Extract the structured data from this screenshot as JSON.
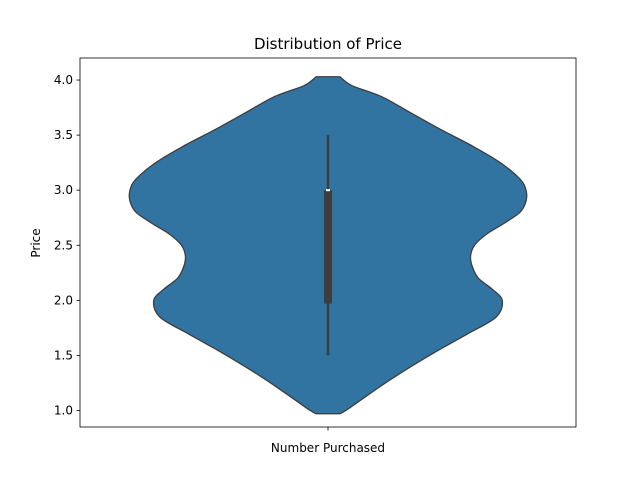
{
  "chart_data": {
    "type": "violin",
    "title": "Distribution of Price",
    "xlabel": "",
    "ylabel": "Price",
    "categories": [
      "Number Purchased"
    ],
    "ylim": [
      0.85,
      4.2
    ],
    "yticks": [
      1.0,
      1.5,
      2.0,
      2.5,
      3.0,
      3.5,
      4.0
    ],
    "ytick_labels": [
      "1.0",
      "1.5",
      "2.0",
      "2.5",
      "3.0",
      "3.5",
      "4.0"
    ],
    "grid": false,
    "colors": {
      "violin_fill": "#3274a1",
      "violin_edge": "#3d3d3d",
      "box": "#3d3d3d",
      "median": "#ffffff"
    },
    "violin": {
      "density_profile": [
        {
          "y": 0.97,
          "half_width": 0.06
        },
        {
          "y": 1.0,
          "half_width": 0.09
        },
        {
          "y": 1.1,
          "half_width": 0.17
        },
        {
          "y": 1.25,
          "half_width": 0.29
        },
        {
          "y": 1.4,
          "half_width": 0.42
        },
        {
          "y": 1.55,
          "half_width": 0.56
        },
        {
          "y": 1.7,
          "half_width": 0.71
        },
        {
          "y": 1.85,
          "half_width": 0.85
        },
        {
          "y": 2.0,
          "half_width": 0.88
        },
        {
          "y": 2.1,
          "half_width": 0.83
        },
        {
          "y": 2.2,
          "half_width": 0.76
        },
        {
          "y": 2.3,
          "half_width": 0.73
        },
        {
          "y": 2.4,
          "half_width": 0.72
        },
        {
          "y": 2.5,
          "half_width": 0.74
        },
        {
          "y": 2.6,
          "half_width": 0.8
        },
        {
          "y": 2.7,
          "half_width": 0.89
        },
        {
          "y": 2.8,
          "half_width": 0.97
        },
        {
          "y": 2.9,
          "half_width": 1.0
        },
        {
          "y": 3.0,
          "half_width": 1.0
        },
        {
          "y": 3.1,
          "half_width": 0.97
        },
        {
          "y": 3.25,
          "half_width": 0.87
        },
        {
          "y": 3.4,
          "half_width": 0.73
        },
        {
          "y": 3.55,
          "half_width": 0.57
        },
        {
          "y": 3.7,
          "half_width": 0.42
        },
        {
          "y": 3.85,
          "half_width": 0.27
        },
        {
          "y": 3.95,
          "half_width": 0.12
        },
        {
          "y": 4.03,
          "half_width": 0.06
        }
      ],
      "whisker_low": 1.5,
      "whisker_high": 3.5,
      "q1": 1.97,
      "q3": 3.0,
      "median": 3.0
    }
  }
}
